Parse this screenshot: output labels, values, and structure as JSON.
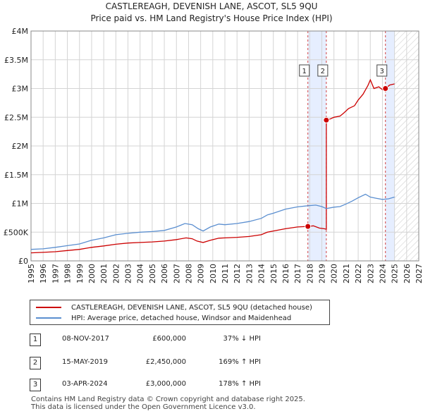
{
  "chart_data": {
    "type": "line",
    "title": "CASTLEREAGH, DEVENISH LANE, ASCOT, SL5 9QU",
    "subtitle": "Price paid vs. HM Land Registry's House Price Index (HPI)",
    "xlabel": "",
    "ylabel": "",
    "xlim": [
      1995,
      2027
    ],
    "ylim": [
      0,
      4000000
    ],
    "x_ticks": [
      1995,
      1996,
      1997,
      1998,
      1999,
      2000,
      2001,
      2002,
      2003,
      2004,
      2005,
      2006,
      2007,
      2008,
      2009,
      2010,
      2011,
      2012,
      2013,
      2014,
      2015,
      2016,
      2017,
      2018,
      2019,
      2020,
      2021,
      2022,
      2023,
      2024,
      2025,
      2026,
      2027
    ],
    "y_ticks": [
      {
        "value": 0,
        "label": "£0"
      },
      {
        "value": 500000,
        "label": "£500K"
      },
      {
        "value": 1000000,
        "label": "£1M"
      },
      {
        "value": 1500000,
        "label": "£1.5M"
      },
      {
        "value": 2000000,
        "label": "£2M"
      },
      {
        "value": 2500000,
        "label": "£2.5M"
      },
      {
        "value": 3000000,
        "label": "£3M"
      },
      {
        "value": 3500000,
        "label": "£3.5M"
      },
      {
        "value": 4000000,
        "label": "£4M"
      }
    ],
    "grid": true,
    "series": [
      {
        "name": "CASTLEREAGH, DEVENISH LANE, ASCOT, SL5 9QU (detached house)",
        "color": "#cc0000",
        "points": [
          [
            1995.0,
            140000
          ],
          [
            1996.0,
            148000
          ],
          [
            1997.0,
            160000
          ],
          [
            1998.0,
            180000
          ],
          [
            1999.0,
            200000
          ],
          [
            2000.0,
            235000
          ],
          [
            2001.0,
            260000
          ],
          [
            2002.0,
            290000
          ],
          [
            2003.0,
            310000
          ],
          [
            2004.0,
            320000
          ],
          [
            2005.0,
            330000
          ],
          [
            2006.0,
            345000
          ],
          [
            2007.0,
            370000
          ],
          [
            2007.8,
            400000
          ],
          [
            2008.3,
            385000
          ],
          [
            2008.7,
            345000
          ],
          [
            2009.2,
            320000
          ],
          [
            2009.8,
            360000
          ],
          [
            2010.5,
            395000
          ],
          [
            2011.0,
            400000
          ],
          [
            2012.0,
            410000
          ],
          [
            2013.0,
            425000
          ],
          [
            2014.0,
            455000
          ],
          [
            2014.5,
            500000
          ],
          [
            2015.0,
            520000
          ],
          [
            2016.0,
            560000
          ],
          [
            2016.5,
            575000
          ],
          [
            2017.0,
            590000
          ],
          [
            2017.85,
            600000
          ],
          [
            2018.3,
            610000
          ],
          [
            2018.8,
            570000
          ],
          [
            2019.2,
            560000
          ],
          [
            2019.37,
            550000
          ],
          [
            2019.37,
            2450000
          ],
          [
            2019.7,
            2470000
          ],
          [
            2020.0,
            2500000
          ],
          [
            2020.5,
            2520000
          ],
          [
            2020.8,
            2570000
          ],
          [
            2021.2,
            2650000
          ],
          [
            2021.7,
            2700000
          ],
          [
            2022.0,
            2800000
          ],
          [
            2022.4,
            2900000
          ],
          [
            2022.8,
            3050000
          ],
          [
            2023.0,
            3150000
          ],
          [
            2023.3,
            3000000
          ],
          [
            2023.7,
            3030000
          ],
          [
            2024.0,
            2980000
          ],
          [
            2024.25,
            3000000
          ],
          [
            2024.6,
            3060000
          ],
          [
            2025.0,
            3080000
          ]
        ]
      },
      {
        "name": "HPI: Average price, detached house, Windsor and Maidenhead",
        "color": "#5b8fd0",
        "points": [
          [
            1995.0,
            200000
          ],
          [
            1996.0,
            210000
          ],
          [
            1997.0,
            235000
          ],
          [
            1998.0,
            265000
          ],
          [
            1999.0,
            295000
          ],
          [
            2000.0,
            360000
          ],
          [
            2001.0,
            400000
          ],
          [
            2002.0,
            455000
          ],
          [
            2003.0,
            480000
          ],
          [
            2004.0,
            500000
          ],
          [
            2005.0,
            510000
          ],
          [
            2006.0,
            530000
          ],
          [
            2007.0,
            590000
          ],
          [
            2007.7,
            650000
          ],
          [
            2008.3,
            630000
          ],
          [
            2008.8,
            560000
          ],
          [
            2009.2,
            520000
          ],
          [
            2009.8,
            590000
          ],
          [
            2010.5,
            640000
          ],
          [
            2011.0,
            630000
          ],
          [
            2012.0,
            650000
          ],
          [
            2013.0,
            685000
          ],
          [
            2014.0,
            740000
          ],
          [
            2014.5,
            800000
          ],
          [
            2015.0,
            830000
          ],
          [
            2016.0,
            900000
          ],
          [
            2016.5,
            920000
          ],
          [
            2017.0,
            940000
          ],
          [
            2017.85,
            960000
          ],
          [
            2018.5,
            970000
          ],
          [
            2019.0,
            945000
          ],
          [
            2019.37,
            910000
          ],
          [
            2020.0,
            935000
          ],
          [
            2020.5,
            945000
          ],
          [
            2021.0,
            990000
          ],
          [
            2021.5,
            1040000
          ],
          [
            2022.0,
            1100000
          ],
          [
            2022.6,
            1160000
          ],
          [
            2023.0,
            1110000
          ],
          [
            2023.5,
            1090000
          ],
          [
            2024.0,
            1070000
          ],
          [
            2024.5,
            1080000
          ],
          [
            2025.0,
            1110000
          ]
        ]
      }
    ],
    "sales": [
      {
        "id": "1",
        "x": 2017.85,
        "price": 600000,
        "date": "08-NOV-2017",
        "price_label": "£600,000",
        "hpi_label": "37% ↓ HPI"
      },
      {
        "id": "2",
        "x": 2019.37,
        "price": 2450000,
        "date": "15-MAY-2019",
        "price_label": "£2,450,000",
        "hpi_label": "169% ↑ HPI"
      },
      {
        "id": "3",
        "x": 2024.25,
        "price": 3000000,
        "date": "03-APR-2024",
        "price_label": "£3,000,000",
        "hpi_label": "178% ↑ HPI"
      }
    ],
    "future_start": 2025.0,
    "colors": {
      "grid": "#d4d4d4",
      "axis": "#000000",
      "shade": "#e6eeff",
      "marker_line": "#d04040",
      "badge_border": "#444444"
    }
  },
  "legend": {
    "line1": "CASTLEREAGH, DEVENISH LANE, ASCOT, SL5 9QU (detached house)",
    "line2": "HPI: Average price, detached house, Windsor and Maidenhead"
  },
  "footer": {
    "line1": "Contains HM Land Registry data © Crown copyright and database right 2025.",
    "line2": "This data is licensed under the Open Government Licence v3.0."
  }
}
